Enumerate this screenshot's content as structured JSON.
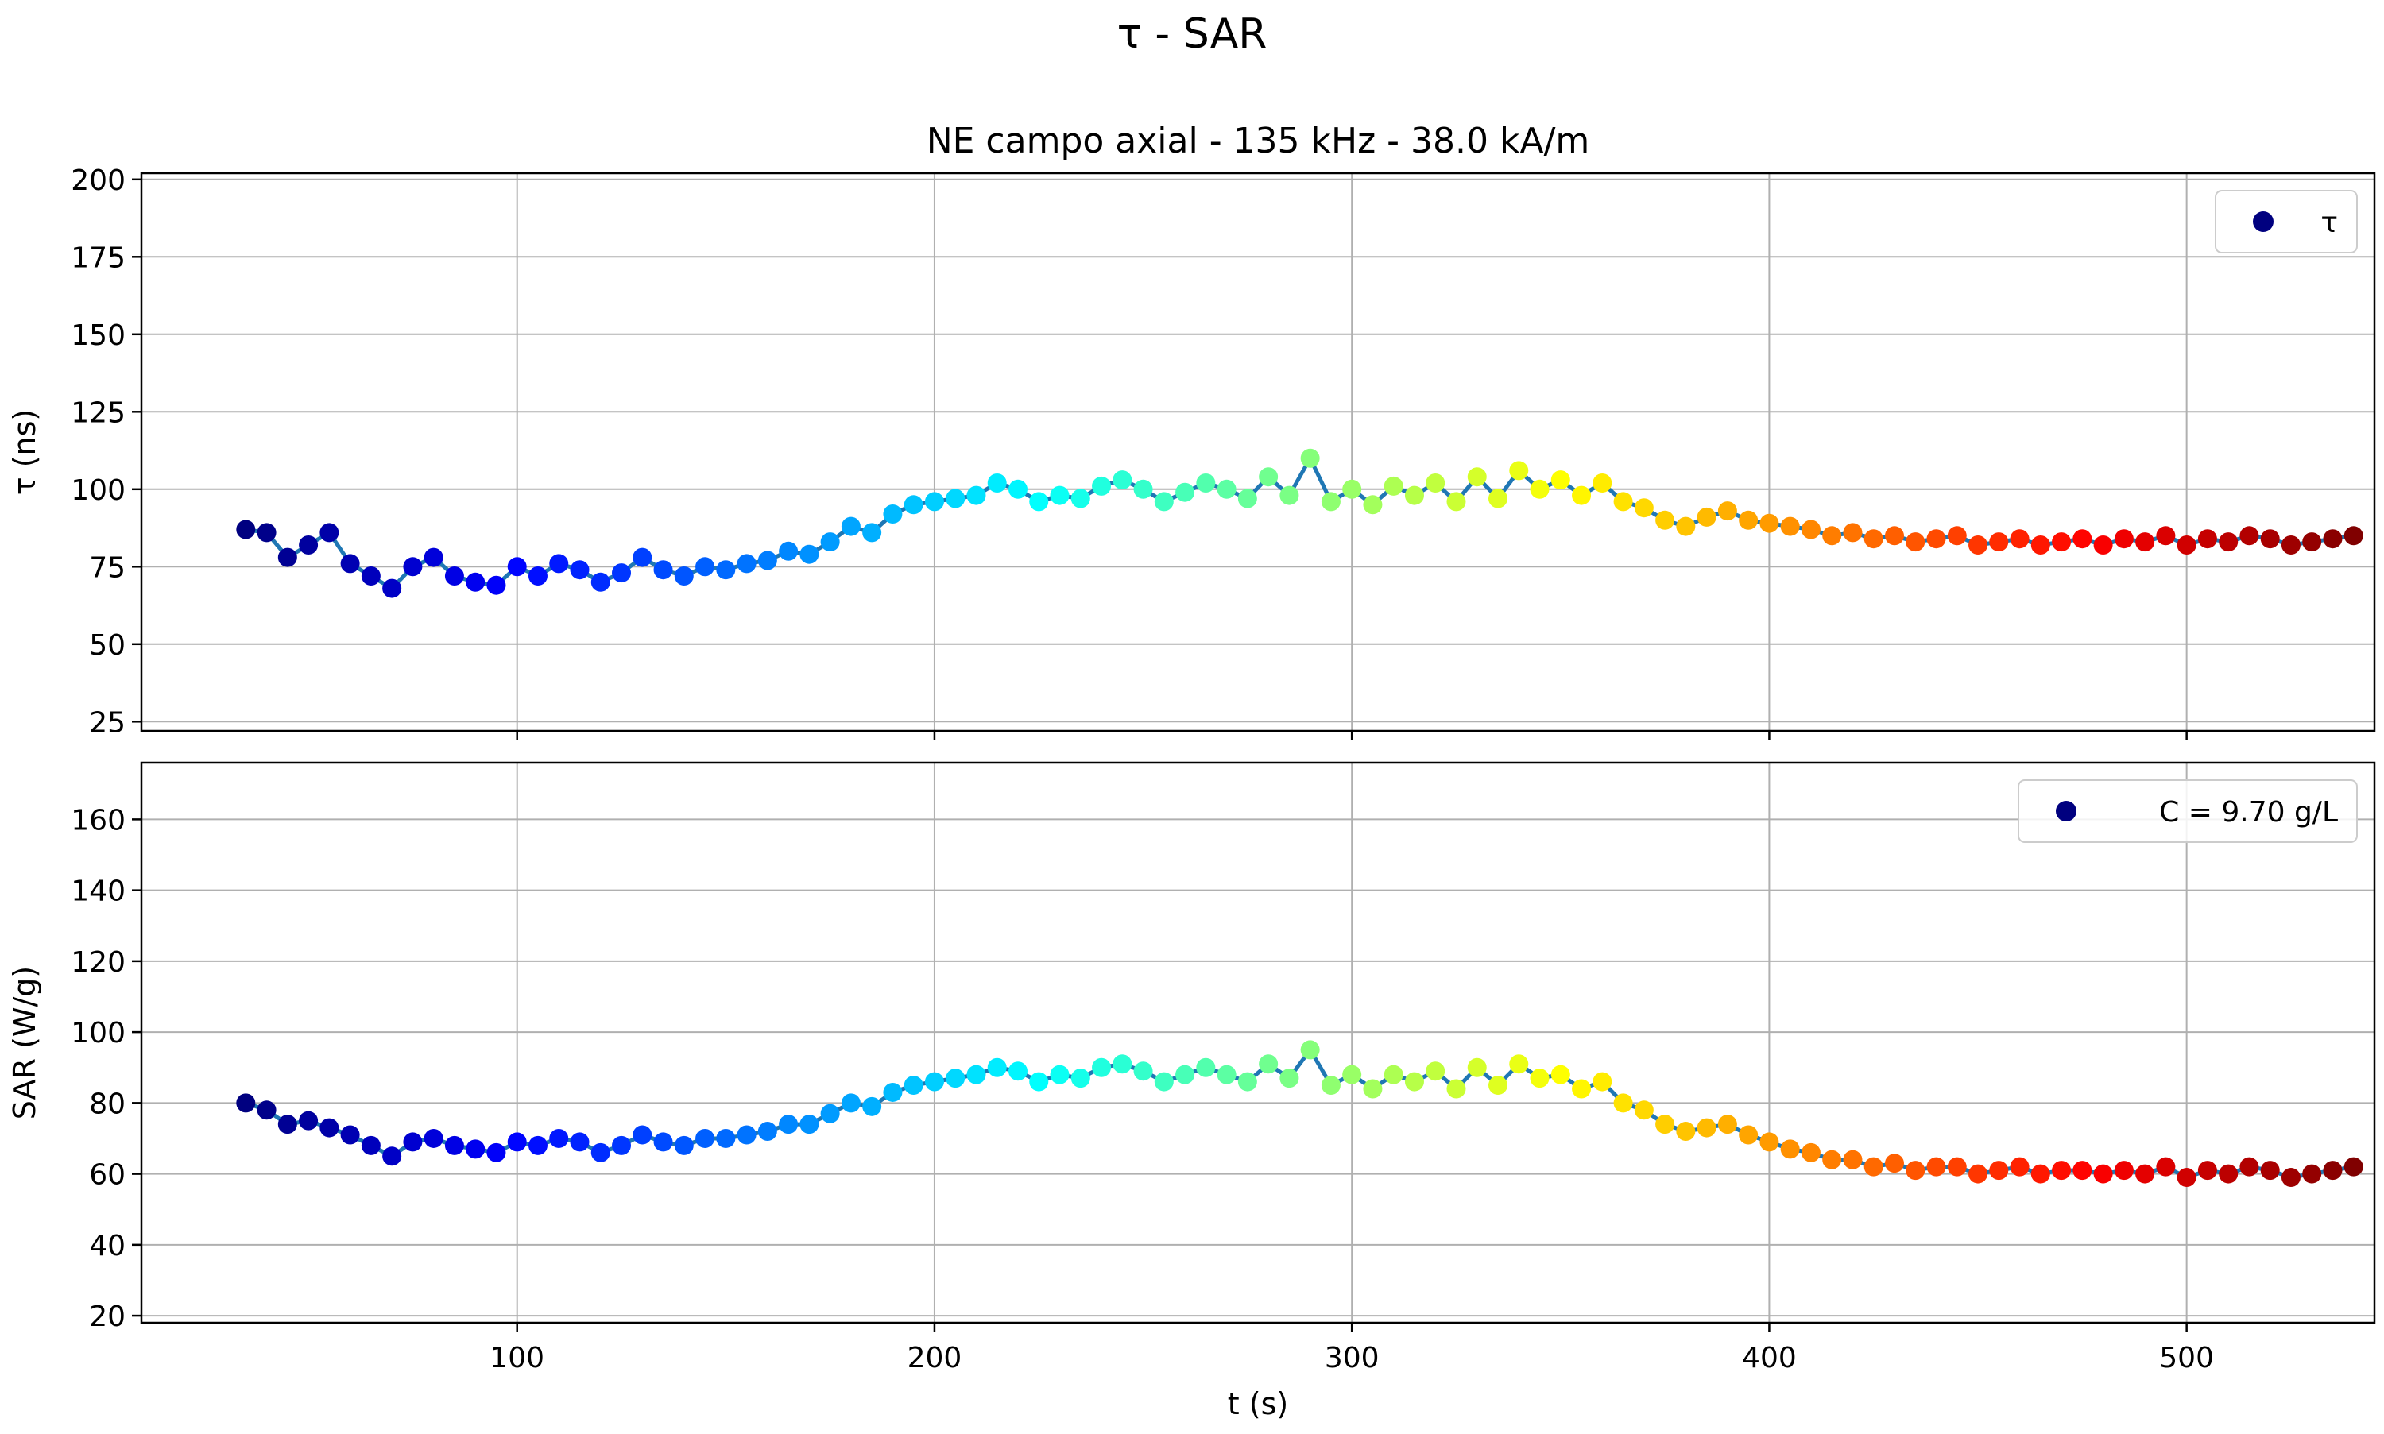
{
  "chart_data": {
    "type": "scatter",
    "suptitle": "τ - SAR",
    "xlabel": "t (s)",
    "xlim": [
      10,
      545
    ],
    "x_ticks": [
      100,
      200,
      300,
      400,
      500
    ],
    "x_tick_labels": [
      "100",
      "200",
      "300",
      "400",
      "500"
    ],
    "grid": true,
    "point_colormap": "jet (colored by time)",
    "line_color": "#1f77b4",
    "panels": [
      {
        "key": "tau",
        "title": "NE campo axial - 135 kHz - 38.0 kA/m",
        "ylabel": "τ (ns)",
        "ylim": [
          22,
          202
        ],
        "y_ticks": [
          25,
          50,
          75,
          100,
          125,
          150,
          175,
          200
        ],
        "y_tick_labels": [
          "25",
          "50",
          "75",
          "100",
          "125",
          "150",
          "175",
          "200"
        ],
        "legend": {
          "label": "τ",
          "position": "upper right",
          "marker_color": "#00007f"
        },
        "series": {
          "x": [
            35,
            40,
            45,
            50,
            55,
            60,
            65,
            70,
            75,
            80,
            85,
            90,
            95,
            100,
            105,
            110,
            115,
            120,
            125,
            130,
            135,
            140,
            145,
            150,
            155,
            160,
            165,
            170,
            175,
            180,
            185,
            190,
            195,
            200,
            205,
            210,
            215,
            220,
            225,
            230,
            235,
            240,
            245,
            250,
            255,
            260,
            265,
            270,
            275,
            280,
            285,
            290,
            295,
            300,
            305,
            310,
            315,
            320,
            325,
            330,
            335,
            340,
            345,
            350,
            355,
            360,
            365,
            370,
            375,
            380,
            385,
            390,
            395,
            400,
            405,
            410,
            415,
            420,
            425,
            430,
            435,
            440,
            445,
            450,
            455,
            460,
            465,
            470,
            475,
            480,
            485,
            490,
            495,
            500,
            505,
            510,
            515,
            520,
            525,
            530,
            535,
            540
          ],
          "y": [
            87,
            86,
            78,
            82,
            86,
            76,
            72,
            68,
            75,
            78,
            72,
            70,
            69,
            75,
            72,
            76,
            74,
            70,
            73,
            78,
            74,
            72,
            75,
            74,
            76,
            77,
            80,
            79,
            83,
            88,
            86,
            92,
            95,
            96,
            97,
            98,
            102,
            100,
            96,
            98,
            97,
            101,
            103,
            100,
            96,
            99,
            102,
            100,
            97,
            104,
            98,
            110,
            96,
            100,
            95,
            101,
            98,
            102,
            96,
            104,
            97,
            106,
            100,
            103,
            98,
            102,
            96,
            94,
            90,
            88,
            91,
            93,
            90,
            89,
            88,
            87,
            85,
            86,
            84,
            85,
            83,
            84,
            85,
            82,
            83,
            84,
            82,
            83,
            84,
            82,
            84,
            83,
            85,
            82,
            84,
            83,
            85,
            84,
            82,
            83,
            84,
            85
          ]
        }
      },
      {
        "key": "sar",
        "title": "",
        "ylabel": "SAR (W/g)",
        "ylim": [
          18,
          176
        ],
        "y_ticks": [
          20,
          40,
          60,
          80,
          100,
          120,
          140,
          160
        ],
        "y_tick_labels": [
          "20",
          "40",
          "60",
          "80",
          "100",
          "120",
          "140",
          "160"
        ],
        "legend": {
          "label": "C = 9.70 g/L",
          "position": "upper right",
          "marker_color": "#00007f"
        },
        "series": {
          "x": [
            35,
            40,
            45,
            50,
            55,
            60,
            65,
            70,
            75,
            80,
            85,
            90,
            95,
            100,
            105,
            110,
            115,
            120,
            125,
            130,
            135,
            140,
            145,
            150,
            155,
            160,
            165,
            170,
            175,
            180,
            185,
            190,
            195,
            200,
            205,
            210,
            215,
            220,
            225,
            230,
            235,
            240,
            245,
            250,
            255,
            260,
            265,
            270,
            275,
            280,
            285,
            290,
            295,
            300,
            305,
            310,
            315,
            320,
            325,
            330,
            335,
            340,
            345,
            350,
            355,
            360,
            365,
            370,
            375,
            380,
            385,
            390,
            395,
            400,
            405,
            410,
            415,
            420,
            425,
            430,
            435,
            440,
            445,
            450,
            455,
            460,
            465,
            470,
            475,
            480,
            485,
            490,
            495,
            500,
            505,
            510,
            515,
            520,
            525,
            530,
            535,
            540
          ],
          "y": [
            80,
            78,
            74,
            75,
            73,
            71,
            68,
            65,
            69,
            70,
            68,
            67,
            66,
            69,
            68,
            70,
            69,
            66,
            68,
            71,
            69,
            68,
            70,
            70,
            71,
            72,
            74,
            74,
            77,
            80,
            79,
            83,
            85,
            86,
            87,
            88,
            90,
            89,
            86,
            88,
            87,
            90,
            91,
            89,
            86,
            88,
            90,
            88,
            86,
            91,
            87,
            95,
            85,
            88,
            84,
            88,
            86,
            89,
            84,
            90,
            85,
            91,
            87,
            88,
            84,
            86,
            80,
            78,
            74,
            72,
            73,
            74,
            71,
            69,
            67,
            66,
            64,
            64,
            62,
            63,
            61,
            62,
            62,
            60,
            61,
            62,
            60,
            61,
            61,
            60,
            61,
            60,
            62,
            59,
            61,
            60,
            62,
            61,
            59,
            60,
            61,
            62
          ]
        }
      }
    ]
  }
}
